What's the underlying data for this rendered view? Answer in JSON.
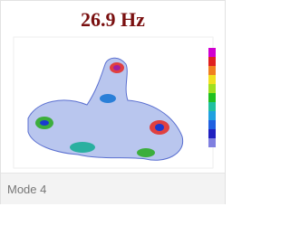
{
  "image": {
    "title": "26.9 Hz"
  },
  "caption": "Mode 4"
}
